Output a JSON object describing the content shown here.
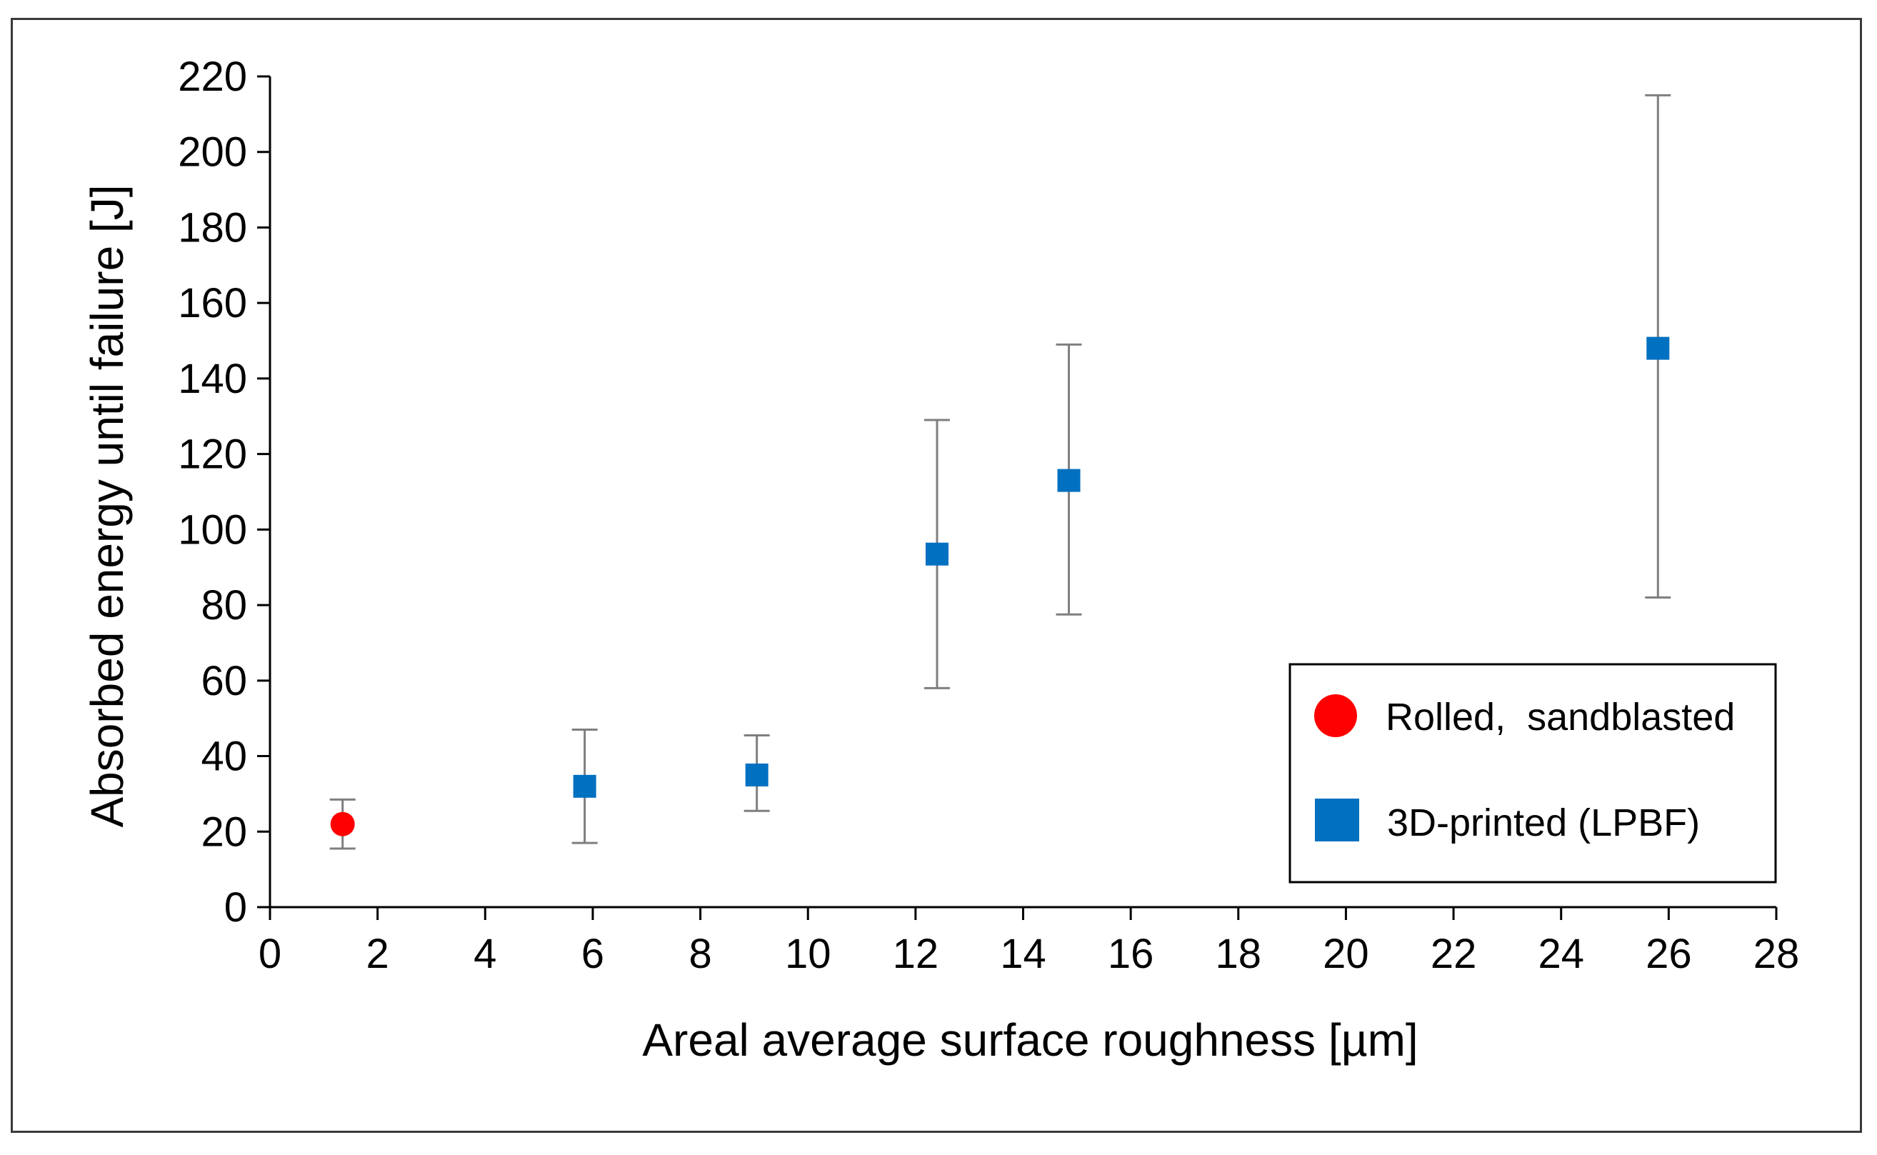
{
  "chart_data": {
    "type": "scatter",
    "title": "",
    "xlabel": "Areal average surface roughness [µm]",
    "ylabel": "Absorbed energy until failure [J]",
    "xlim": [
      0,
      28
    ],
    "ylim": [
      0,
      220
    ],
    "x_ticks": [
      0,
      2,
      4,
      6,
      8,
      10,
      12,
      14,
      16,
      18,
      20,
      22,
      24,
      26,
      28
    ],
    "y_ticks": [
      0,
      20,
      40,
      60,
      80,
      100,
      120,
      140,
      160,
      180,
      200,
      220
    ],
    "grid": false,
    "legend_position": "bottom-right",
    "series": [
      {
        "name": "Rolled,  sandblasted",
        "marker": "circle",
        "color": "#ff0000",
        "points": [
          {
            "x": 1.35,
            "y": 22,
            "err_low": 15.5,
            "err_high": 28.5
          }
        ]
      },
      {
        "name": "3D-printed (LPBF)",
        "marker": "square",
        "color": "#0070c0",
        "points": [
          {
            "x": 5.85,
            "y": 32,
            "err_low": 17,
            "err_high": 47
          },
          {
            "x": 9.05,
            "y": 35,
            "err_low": 25.5,
            "err_high": 45.5
          },
          {
            "x": 12.4,
            "y": 93.5,
            "err_low": 58,
            "err_high": 129
          },
          {
            "x": 14.85,
            "y": 113,
            "err_low": 77.5,
            "err_high": 149
          },
          {
            "x": 25.8,
            "y": 148,
            "err_low": 82,
            "err_high": 215
          }
        ]
      }
    ],
    "error_bar_color": "#7f7f7f",
    "axis_color": "#000000"
  }
}
